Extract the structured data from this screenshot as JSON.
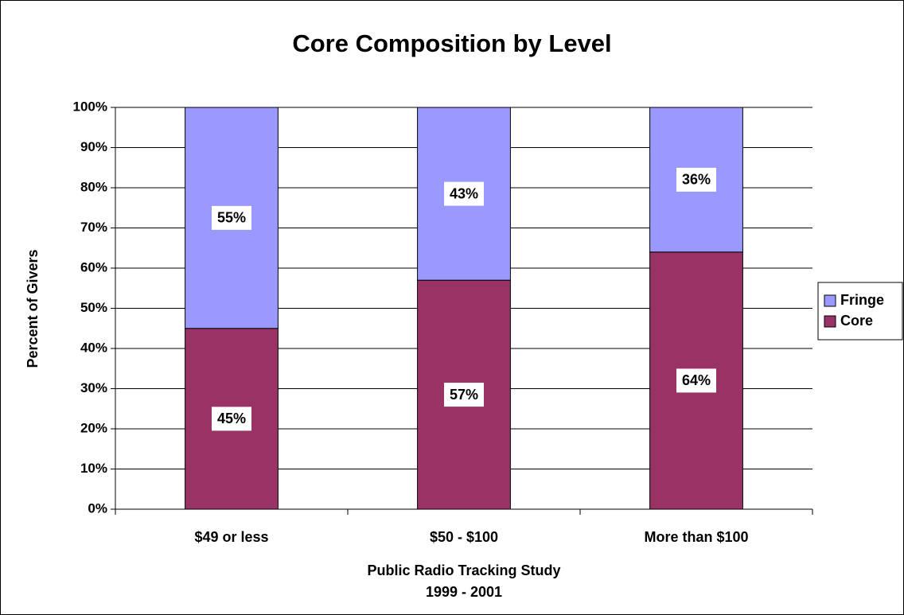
{
  "chart_data": {
    "type": "stacked_bar",
    "title": "Core Composition by Level",
    "y_label": "Percent of Givers",
    "x_label": [
      "Public Radio Tracking Study",
      "1999 - 2001"
    ],
    "categories": [
      "$49 or less",
      "$50 - $100",
      "More than $100"
    ],
    "series": [
      {
        "name": "Core",
        "color": "#993366",
        "values": [
          45,
          57,
          64
        ],
        "value_labels": [
          "45%",
          "57%",
          "64%"
        ]
      },
      {
        "name": "Fringe",
        "color": "#9999ff",
        "values": [
          55,
          43,
          36
        ],
        "value_labels": [
          "55%",
          "43%",
          "36%"
        ]
      }
    ],
    "ylim": [
      0,
      100
    ],
    "yticks": [
      {
        "value": 0,
        "label": "0%"
      },
      {
        "value": 10,
        "label": "10%"
      },
      {
        "value": 20,
        "label": "20%"
      },
      {
        "value": 30,
        "label": "30%"
      },
      {
        "value": 40,
        "label": "40%"
      },
      {
        "value": 50,
        "label": "50%"
      },
      {
        "value": 60,
        "label": "60%"
      },
      {
        "value": 70,
        "label": "70%"
      },
      {
        "value": 80,
        "label": "80%"
      },
      {
        "value": 90,
        "label": "90%"
      },
      {
        "value": 100,
        "label": "100%"
      }
    ],
    "grid": true,
    "legend": "right"
  }
}
